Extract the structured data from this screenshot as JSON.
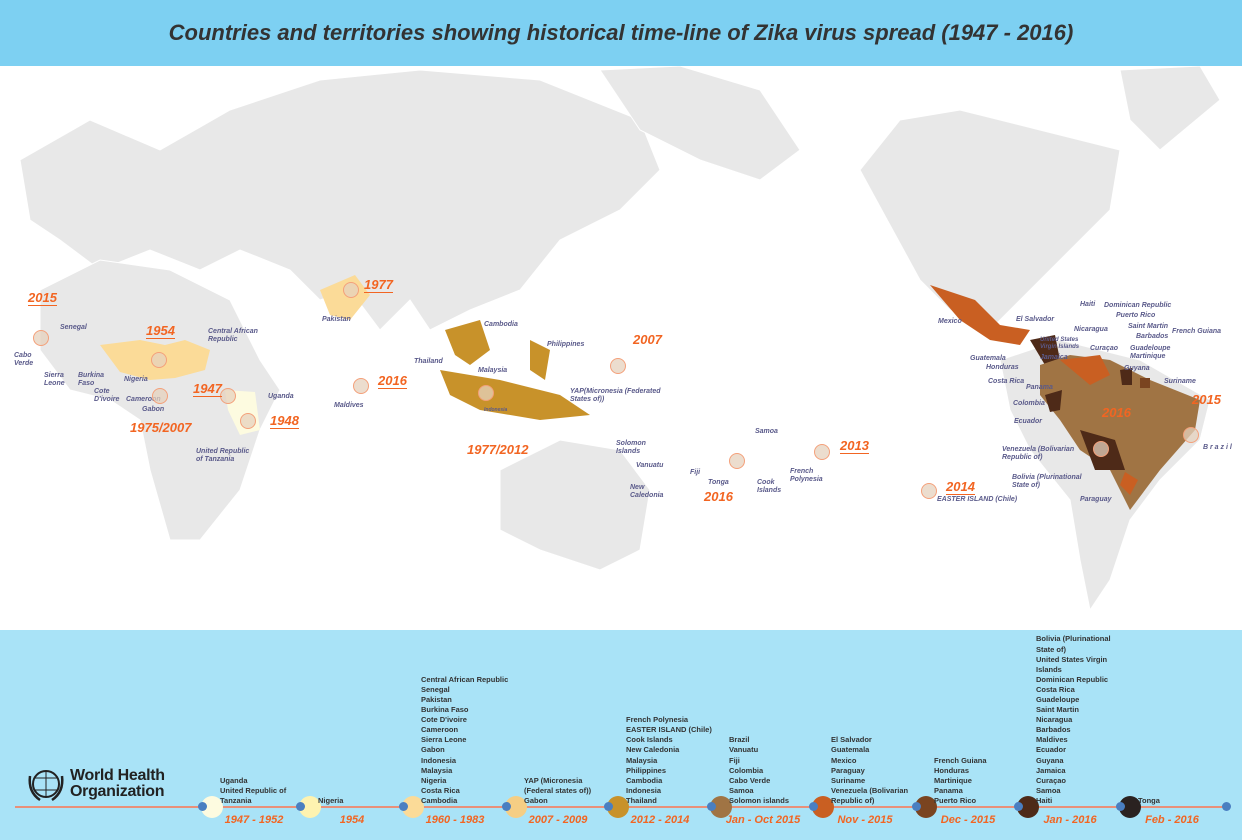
{
  "title": "Countries and territories showing historical time-line of Zika virus spread (1947 - 2016)",
  "colors": {
    "header": "#7dd0f2",
    "land": "#e6e6e6",
    "year": "#f26522",
    "panel": "#a9e3f7",
    "node_dot": "#4a7fc1"
  },
  "map": {
    "labels": [
      "Cabo\nVerde",
      "Senegal",
      "Sierra\nLeone",
      "Burkina\nFaso",
      "Cote\nD'ivoire",
      "Nigeria",
      "Cameroon",
      "Gabon",
      "Central African\nRepublic",
      "Uganda",
      "United Republic\nof Tanzania",
      "Pakistan",
      "Maldives",
      "Thailand",
      "Cambodia",
      "Philippines",
      "Malaysia",
      "Indonesia",
      "YAP(Micronesia (Federated\nStates of))",
      "Solomon\nIslands",
      "Vanuatu",
      "New\nCaledonia",
      "Fiji",
      "Samoa",
      "Tonga",
      "Cook\nIslands",
      "French\nPolynesia",
      "EASTER ISLAND (Chile)",
      "Mexico",
      "Guatemala",
      "Honduras",
      "El Salvador",
      "Costa Rica",
      "Panama",
      "Colombia",
      "Ecuador",
      "United States\nVirgin Islands",
      "Jamaica",
      "Nicaragua",
      "Haiti",
      "Dominican Republic",
      "Puerto Rico",
      "Saint Martin",
      "Barbados",
      "Curaçao",
      "Guadeloupe\nMartinique",
      "Guyana",
      "French Guiana",
      "Suriname",
      "Venezuela (Bolivarian\nRepublic of)",
      "Bolivia (Plurinational\nState of)",
      "Paraguay",
      "B r a z i l"
    ],
    "years": [
      "2015",
      "1954",
      "1947",
      "1948",
      "1975/2007",
      "1977",
      "2016",
      "1977/2012",
      "2007",
      "2016",
      "2013",
      "2014",
      "2016",
      "2015"
    ]
  },
  "logo": {
    "name": "World Health\nOrganization"
  },
  "timeline": [
    {
      "period": "1947 - 1952",
      "color": "#fdfbe0",
      "countries": [
        "Uganda",
        "United Republic of",
        "Tanzania"
      ]
    },
    {
      "period": "1954",
      "color": "#fef3b0",
      "countries": [
        "Nigeria"
      ]
    },
    {
      "period": "1960 - 1983",
      "color": "#fbdb98",
      "countries": [
        "Central African Republic",
        "Senegal",
        "Pakistan",
        "Burkina Faso",
        "Cote D'ivoire",
        "Cameroon",
        "Sierra Leone",
        "Gabon",
        "Indonesia",
        "Malaysia",
        "Nigeria",
        "Costa Rica",
        "Cambodia"
      ]
    },
    {
      "period": "2007 - 2009",
      "color": "#f5ce84",
      "countries": [
        "YAP (Micronesia",
        "(Federal states of))",
        "Gabon"
      ]
    },
    {
      "period": "2012 - 2014",
      "color": "#c8922a",
      "countries": [
        "French Polynesia",
        "EASTER ISLAND (Chile)",
        "Cook Islands",
        "New Caledonia",
        "Malaysia",
        "Philippines",
        "Cambodia",
        "Indonesia",
        "Thailand"
      ]
    },
    {
      "period": "Jan - Oct 2015",
      "color": "#a07444",
      "countries": [
        "Brazil",
        "Vanuatu",
        "Fiji",
        "Colombia",
        "Cabo Verde",
        "Samoa",
        "Solomon islands"
      ]
    },
    {
      "period": "Nov - 2015",
      "color": "#c95f22",
      "countries": [
        "El Salvador",
        "Guatemala",
        "Mexico",
        "Paraguay",
        "Suriname",
        "Venezuela (Bolivarian",
        "Republic of)"
      ]
    },
    {
      "period": "Dec - 2015",
      "color": "#7a4420",
      "countries": [
        "French Guiana",
        "Honduras",
        "Martinique",
        "Panama",
        "Puerto Rico"
      ]
    },
    {
      "period": "Jan - 2016",
      "color": "#4e2a18",
      "countries": [
        "Bolivia (Plurinational",
        "State of)",
        "United States Virgin",
        "Islands",
        "Dominican Republic",
        "Costa Rica",
        "Guadeloupe",
        "Saint Martin",
        "Nicaragua",
        "Barbados",
        "Maldives",
        "Ecuador",
        "Guyana",
        "Jamaica",
        "Curaçao",
        "Samoa",
        "Haiti"
      ]
    },
    {
      "period": "Feb - 2016",
      "color": "#2a2220",
      "countries": [
        "Tonga"
      ]
    }
  ]
}
